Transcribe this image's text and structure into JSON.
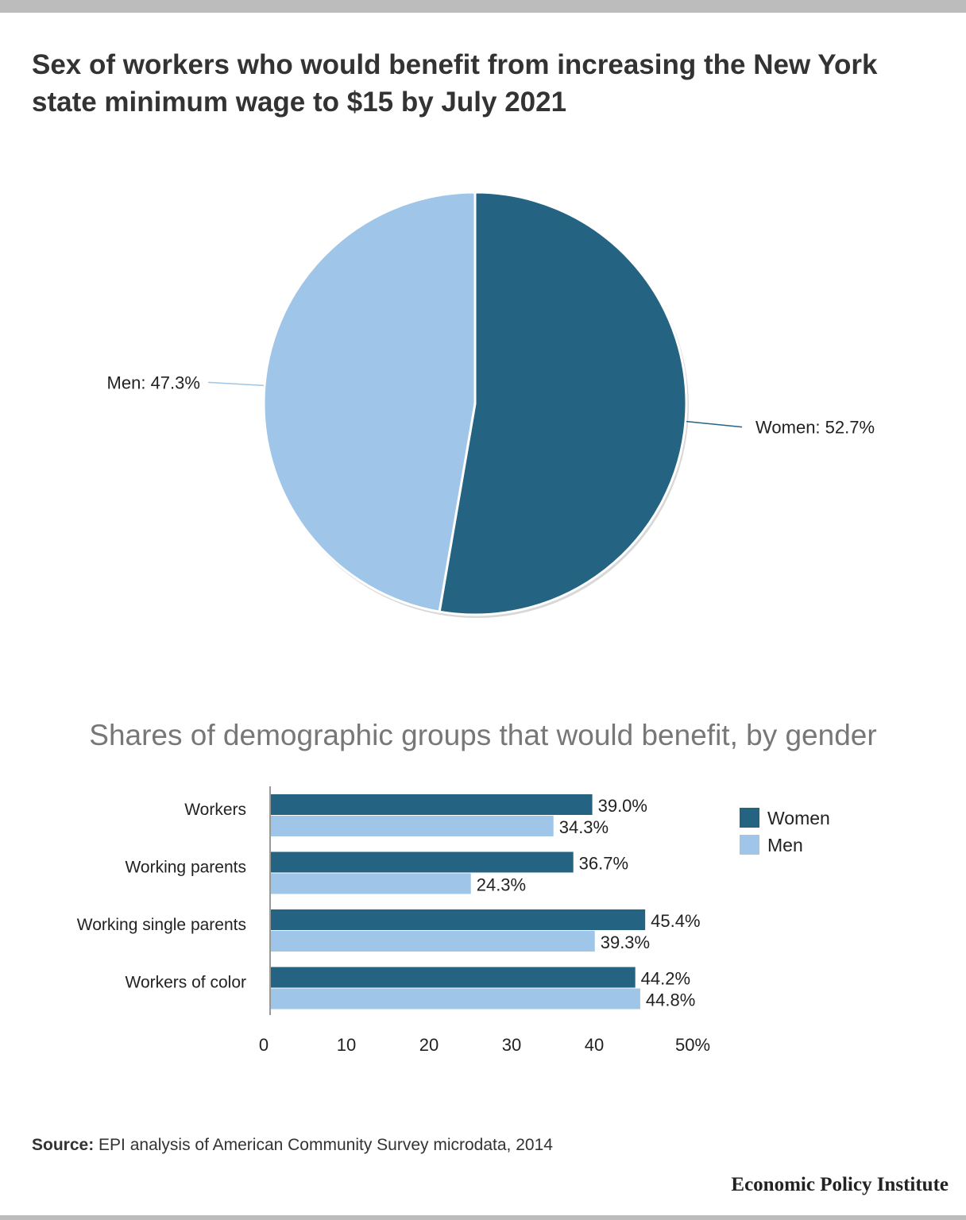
{
  "title": "Sex of workers who would benefit from increasing the New York state minimum wage to $15 by July 2021",
  "colors": {
    "women": "#256383",
    "men": "#9fc5e8",
    "axis": "#999999",
    "subtitle": "#777777"
  },
  "chart_data": [
    {
      "type": "pie",
      "slices": [
        {
          "name": "Women",
          "value": 52.7,
          "label": "Women: 52.7%"
        },
        {
          "name": "Men",
          "value": 47.3,
          "label": "Men: 47.3%"
        }
      ]
    },
    {
      "type": "bar",
      "orientation": "horizontal",
      "title": "Shares of demographic groups that would benefit, by gender",
      "categories": [
        "Workers",
        "Working parents",
        "Working single parents",
        "Workers of color"
      ],
      "series": [
        {
          "name": "Women",
          "values": [
            39.0,
            36.7,
            45.4,
            44.2
          ],
          "labels": [
            "39.0%",
            "36.7%",
            "45.4%",
            "44.2%"
          ]
        },
        {
          "name": "Men",
          "values": [
            34.3,
            24.3,
            39.3,
            44.8
          ],
          "labels": [
            "34.3%",
            "24.3%",
            "39.3%",
            "44.8%"
          ]
        }
      ],
      "xlim": [
        0,
        50
      ],
      "xticks": [
        "0",
        "10",
        "20",
        "30",
        "40",
        "50%"
      ],
      "legend": "right"
    }
  ],
  "source": {
    "label": "Source:",
    "text": "EPI analysis of American Community Survey microdata, 2014"
  },
  "brand": "Economic Policy Institute"
}
